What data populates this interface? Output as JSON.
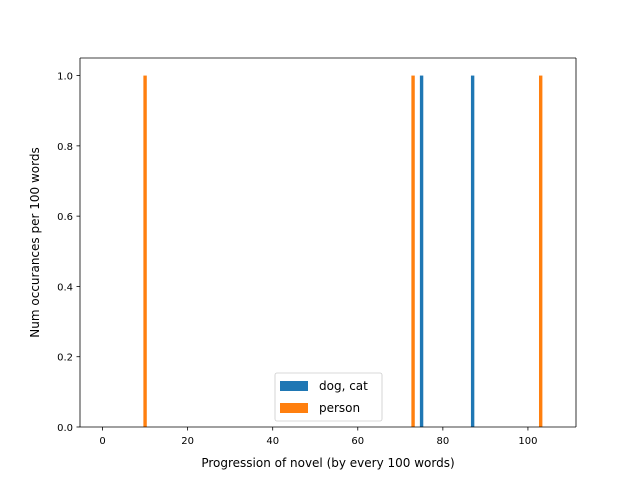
{
  "chart_data": {
    "type": "bar",
    "title": "",
    "xlabel": "Progression of novel (by every 100 words)",
    "ylabel": "Num occurances per 100 words",
    "xlim": [
      -5.3,
      111.3
    ],
    "ylim": [
      0,
      1.05
    ],
    "xticks": [
      0,
      20,
      40,
      60,
      80,
      100
    ],
    "xtick_labels": [
      "0",
      "20",
      "40",
      "60",
      "80",
      "100"
    ],
    "yticks": [
      0,
      0.2,
      0.4,
      0.6,
      0.8,
      1.0
    ],
    "ytick_labels": [
      "0.0",
      "0.2",
      "0.4",
      "0.6",
      "0.8",
      "1.0"
    ],
    "grid": false,
    "legend_position": "bottom-center",
    "bar_width": 0.8,
    "series": [
      {
        "name": "dog, cat",
        "color": "#1f77b4",
        "x": [
          75,
          87
        ],
        "values": [
          1,
          1
        ]
      },
      {
        "name": "person",
        "color": "#ff7f0e",
        "x": [
          10,
          73,
          103
        ],
        "values": [
          1,
          1,
          1
        ]
      }
    ]
  }
}
